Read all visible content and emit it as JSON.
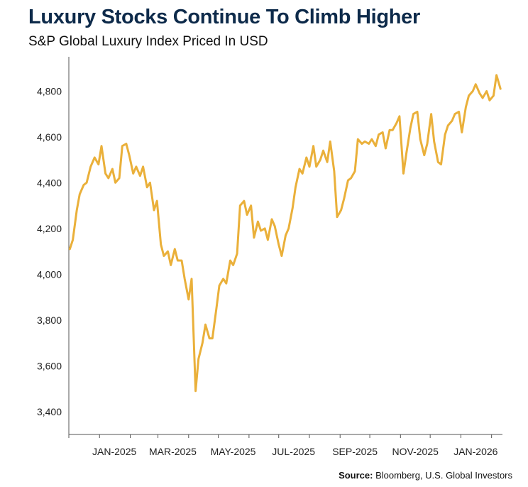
{
  "chart_data": {
    "type": "line",
    "title": "Luxury Stocks Continue To Climb Higher",
    "subtitle": "S&P Global Luxury Index Priced In USD",
    "xlabel": "",
    "ylabel": "",
    "ylim": [
      3300,
      4950
    ],
    "y_ticks": [
      3400,
      3600,
      3800,
      4000,
      4200,
      4400,
      4600,
      4800
    ],
    "y_tick_labels": [
      "3,400",
      "3,600",
      "3,800",
      "4,000",
      "4,200",
      "4,400",
      "4,600",
      "4,800"
    ],
    "x_tick_labels": [
      "JAN-2025",
      "MAR-2025",
      "MAY-2025",
      "JUL-2025",
      "SEP-2025",
      "NOV-2025",
      "JAN-2026"
    ],
    "grid": false,
    "line_color": "#eab03a",
    "series": [
      {
        "x": [
          "2024-12-02",
          "2024-12-05",
          "2024-12-09",
          "2024-12-12",
          "2024-12-16",
          "2024-12-19",
          "2024-12-23",
          "2024-12-27",
          "2024-12-31",
          "2025-01-03",
          "2025-01-07",
          "2025-01-10",
          "2025-01-14",
          "2025-01-17",
          "2025-01-21",
          "2025-01-24",
          "2025-01-28",
          "2025-01-31",
          "2025-02-04",
          "2025-02-07",
          "2025-02-11",
          "2025-02-14",
          "2025-02-18",
          "2025-02-21",
          "2025-02-25",
          "2025-02-28",
          "2025-03-04",
          "2025-03-07",
          "2025-03-11",
          "2025-03-14",
          "2025-03-18",
          "2025-03-21",
          "2025-03-25",
          "2025-03-28",
          "2025-04-01",
          "2025-04-04",
          "2025-04-08",
          "2025-04-11",
          "2025-04-15",
          "2025-04-18",
          "2025-04-22",
          "2025-04-25",
          "2025-04-29",
          "2025-05-02",
          "2025-05-06",
          "2025-05-09",
          "2025-05-13",
          "2025-05-16",
          "2025-05-20",
          "2025-05-23",
          "2025-05-27",
          "2025-05-30",
          "2025-06-03",
          "2025-06-06",
          "2025-06-10",
          "2025-06-13",
          "2025-06-17",
          "2025-06-20",
          "2025-06-24",
          "2025-06-27",
          "2025-07-01",
          "2025-07-04",
          "2025-07-08",
          "2025-07-11",
          "2025-07-15",
          "2025-07-18",
          "2025-07-22",
          "2025-07-25",
          "2025-07-29",
          "2025-08-01",
          "2025-08-05",
          "2025-08-08",
          "2025-08-12",
          "2025-08-15",
          "2025-08-19",
          "2025-08-22",
          "2025-08-26",
          "2025-08-29",
          "2025-09-02",
          "2025-09-05",
          "2025-09-09",
          "2025-09-12",
          "2025-09-16",
          "2025-09-19",
          "2025-09-23",
          "2025-09-26",
          "2025-09-30",
          "2025-10-03",
          "2025-10-07",
          "2025-10-10",
          "2025-10-14",
          "2025-10-17",
          "2025-10-21",
          "2025-10-24",
          "2025-10-28",
          "2025-10-31",
          "2025-11-04",
          "2025-11-07",
          "2025-11-11",
          "2025-11-14",
          "2025-11-18",
          "2025-11-21",
          "2025-11-25",
          "2025-11-28",
          "2025-12-02",
          "2025-12-05",
          "2025-12-09",
          "2025-12-12",
          "2025-12-16",
          "2025-12-19",
          "2025-12-23",
          "2025-12-26",
          "2025-12-30",
          "2026-01-02",
          "2026-01-06",
          "2026-01-09",
          "2026-01-13",
          "2026-01-16",
          "2026-01-20",
          "2026-01-23",
          "2026-01-27",
          "2026-01-30",
          "2026-02-03",
          "2026-02-06",
          "2026-02-10"
        ],
        "values": [
          4110,
          4150,
          4280,
          4350,
          4390,
          4400,
          4470,
          4510,
          4480,
          4560,
          4440,
          4420,
          4460,
          4400,
          4420,
          4560,
          4570,
          4520,
          4440,
          4470,
          4430,
          4470,
          4380,
          4400,
          4280,
          4320,
          4130,
          4080,
          4100,
          4040,
          4110,
          4060,
          4060,
          3980,
          3890,
          3980,
          3490,
          3630,
          3700,
          3780,
          3720,
          3720,
          3850,
          3950,
          3980,
          3960,
          4060,
          4040,
          4090,
          4300,
          4320,
          4260,
          4300,
          4160,
          4230,
          4190,
          4200,
          4150,
          4240,
          4210,
          4130,
          4080,
          4170,
          4200,
          4290,
          4380,
          4460,
          4440,
          4510,
          4470,
          4560,
          4470,
          4500,
          4540,
          4490,
          4580,
          4450,
          4250,
          4280,
          4330,
          4410,
          4420,
          4450,
          4590,
          4570,
          4580,
          4570,
          4590,
          4560,
          4610,
          4620,
          4550,
          4630,
          4630,
          4660,
          4690,
          4440,
          4530,
          4640,
          4700,
          4710,
          4590,
          4520,
          4570,
          4700,
          4580,
          4490,
          4480,
          4610,
          4650,
          4670,
          4700,
          4710,
          4620,
          4730,
          4780,
          4800,
          4830,
          4790,
          4770,
          4800,
          4760,
          4780,
          4870,
          4810
        ],
        "color": "#eab03a"
      }
    ]
  },
  "source": {
    "label": "Source:",
    "text": " Bloomberg, U.S. Global Investors"
  }
}
